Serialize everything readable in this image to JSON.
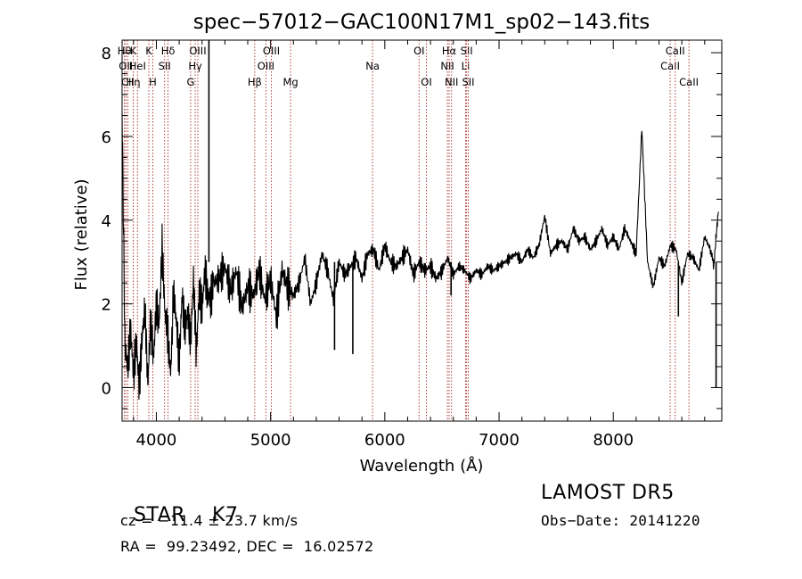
{
  "chart_data": {
    "type": "line",
    "title": "spec−57012−GAC100N17M1_sp02−143.fits",
    "xlabel": "Wavelength (Å)",
    "ylabel": "Flux (relative)",
    "xlim": [
      3700,
      8950
    ],
    "ylim": [
      -0.8,
      8.3
    ],
    "xticks": [
      4000,
      5000,
      6000,
      7000,
      8000
    ],
    "yticks": [
      0,
      2,
      4,
      6,
      8
    ],
    "grid": false,
    "series": [
      {
        "x": [
          3700,
          3725,
          3750,
          3775,
          3800,
          3825,
          3850,
          3875,
          3900,
          3925,
          3950,
          3975,
          4000,
          4025,
          4050,
          4075,
          4100,
          4125,
          4150,
          4175,
          4200,
          4225,
          4250,
          4275,
          4300,
          4325,
          4350,
          4375,
          4400,
          4425,
          4450,
          4475,
          4500,
          4550,
          4600,
          4650,
          4700,
          4750,
          4800,
          4850,
          4900,
          4950,
          5000,
          5050,
          5100,
          5150,
          5200,
          5250,
          5300,
          5350,
          5400,
          5450,
          5500,
          5550,
          5600,
          5650,
          5700,
          5750,
          5800,
          5850,
          5900,
          5950,
          6000,
          6050,
          6100,
          6150,
          6200,
          6250,
          6300,
          6350,
          6400,
          6450,
          6500,
          6550,
          6600,
          6650,
          6700,
          6750,
          6800,
          6850,
          6900,
          6950,
          7000,
          7050,
          7100,
          7150,
          7200,
          7250,
          7300,
          7350,
          7400,
          7450,
          7500,
          7550,
          7600,
          7650,
          7700,
          7750,
          7800,
          7850,
          7900,
          7950,
          8000,
          8050,
          8100,
          8150,
          8200,
          8250,
          8300,
          8350,
          8400,
          8450,
          8500,
          8550,
          8600,
          8650,
          8700,
          8750,
          8800,
          8850,
          8880,
          8900,
          8920
        ],
        "y": [
          6.7,
          1.0,
          0.5,
          1.4,
          0.3,
          1.1,
          0.0,
          1.2,
          1.9,
          0.1,
          1.6,
          0.7,
          2.0,
          1.5,
          3.4,
          1.8,
          1.3,
          0.3,
          2.3,
          1.6,
          0.6,
          2.2,
          1.4,
          1.8,
          1.1,
          2.6,
          0.8,
          2.3,
          1.9,
          2.8,
          2.2,
          2.1,
          2.5,
          2.6,
          2.9,
          2.3,
          2.8,
          1.9,
          2.4,
          2.2,
          2.8,
          2.1,
          2.6,
          1.7,
          2.8,
          2.4,
          2.2,
          2.5,
          3.1,
          2.0,
          2.5,
          3.2,
          2.8,
          2.1,
          3.0,
          2.7,
          2.9,
          3.1,
          2.6,
          3.2,
          3.3,
          2.8,
          3.4,
          3.0,
          2.9,
          3.1,
          3.3,
          2.7,
          3.0,
          2.8,
          2.9,
          2.6,
          2.8,
          3.1,
          2.7,
          2.9,
          2.8,
          2.6,
          2.8,
          2.7,
          2.9,
          2.8,
          2.9,
          3.0,
          3.1,
          3.2,
          3.0,
          3.3,
          3.1,
          3.4,
          4.1,
          3.2,
          3.4,
          3.5,
          3.3,
          3.8,
          3.5,
          3.6,
          3.3,
          3.5,
          3.8,
          3.4,
          3.6,
          3.3,
          3.8,
          3.5,
          3.2,
          6.2,
          3.0,
          2.4,
          3.1,
          2.9,
          3.4,
          3.3,
          2.5,
          3.2,
          3.1,
          2.8,
          3.6,
          3.3,
          2.9,
          3.6,
          4.2
        ]
      }
    ],
    "spikes": [
      {
        "x": 4460,
        "y": 8.3
      },
      {
        "x": 5560,
        "y": 0.9
      },
      {
        "x": 5720,
        "y": 0.8
      },
      {
        "x": 6580,
        "y": 2.2
      },
      {
        "x": 8570,
        "y": 1.7
      },
      {
        "x": 8900,
        "y": 0.0
      }
    ],
    "lines": [
      {
        "x": 3720,
        "row": 1,
        "label": "Hθ"
      },
      {
        "x": 3733,
        "row": 2,
        "label": "OII"
      },
      {
        "x": 3750,
        "row": 3,
        "label": "CII"
      },
      {
        "x": 3798,
        "row": 1,
        "label": "K"
      },
      {
        "x": 3798,
        "row": 3,
        "label": "Hη"
      },
      {
        "x": 3835,
        "row": 2,
        "label": "HeI"
      },
      {
        "x": 3934,
        "row": 1,
        "label": "K"
      },
      {
        "x": 3969,
        "row": 3,
        "label": "H"
      },
      {
        "x": 4072,
        "row": 2,
        "label": "SII"
      },
      {
        "x": 4102,
        "row": 1,
        "label": "Hδ"
      },
      {
        "x": 4300,
        "row": 3,
        "label": "G"
      },
      {
        "x": 4340,
        "row": 2,
        "label": "Hγ"
      },
      {
        "x": 4363,
        "row": 1,
        "label": "OIII"
      },
      {
        "x": 4861,
        "row": 3,
        "label": "Hβ"
      },
      {
        "x": 4959,
        "row": 2,
        "label": "OIII"
      },
      {
        "x": 5007,
        "row": 1,
        "label": "OIII"
      },
      {
        "x": 5175,
        "row": 3,
        "label": "Mg"
      },
      {
        "x": 5893,
        "row": 2,
        "label": "Na"
      },
      {
        "x": 6300,
        "row": 1,
        "label": "OI"
      },
      {
        "x": 6364,
        "row": 3,
        "label": "OI"
      },
      {
        "x": 6548,
        "row": 2,
        "label": "NII"
      },
      {
        "x": 6563,
        "row": 1,
        "label": "Hα"
      },
      {
        "x": 6584,
        "row": 3,
        "label": "NII"
      },
      {
        "x": 6707,
        "row": 2,
        "label": "Li"
      },
      {
        "x": 6716,
        "row": 1,
        "label": "SII"
      },
      {
        "x": 6731,
        "row": 3,
        "label": "SII"
      },
      {
        "x": 8498,
        "row": 2,
        "label": "CaII"
      },
      {
        "x": 8542,
        "row": 1,
        "label": "CaII"
      },
      {
        "x": 8662,
        "row": 3,
        "label": "CaII"
      }
    ]
  },
  "info": {
    "star_label": "STAR",
    "subclass": "K7",
    "survey": "LAMOST DR5",
    "velocity": "cz = −11.4 ± 23.7 km/s",
    "obs_date": "Obs−Date: 20141220",
    "coords": "RA =  99.23492, DEC =  16.02572"
  },
  "colors": {
    "spectrum": "#000000",
    "line_markers": "#b04040"
  }
}
